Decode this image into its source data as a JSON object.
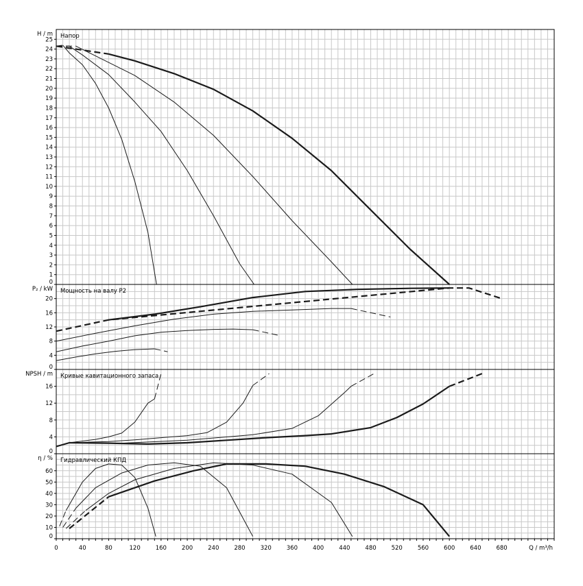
{
  "chart_data": {
    "type": "line",
    "x_axis": {
      "label": "Q / m³/h",
      "range": [
        0,
        760
      ],
      "minor_step": 10,
      "ticks": [
        0,
        40,
        80,
        120,
        160,
        200,
        240,
        280,
        320,
        360,
        400,
        440,
        480,
        520,
        560,
        600,
        640,
        680
      ]
    },
    "grid": true,
    "panels": [
      {
        "id": "head",
        "title": "Напор",
        "ylabel": "H / m",
        "ylim": [
          0,
          26
        ],
        "yticks": [
          0,
          1,
          2,
          3,
          4,
          5,
          6,
          7,
          8,
          9,
          10,
          11,
          12,
          13,
          14,
          15,
          16,
          17,
          18,
          19,
          20,
          21,
          22,
          23,
          24,
          25
        ],
        "y_grid_step": 1,
        "series": [
          {
            "weight": "thin",
            "dashed": [
              [
                0,
                24.3
              ],
              [
                10,
                24.4
              ]
            ],
            "solid": [
              [
                10,
                24.4
              ],
              [
                20,
                23.6
              ],
              [
                40,
                22.4
              ],
              [
                60,
                20.5
              ],
              [
                80,
                18.0
              ],
              [
                100,
                14.8
              ],
              [
                120,
                10.5
              ],
              [
                140,
                5.3
              ],
              [
                153,
                0
              ]
            ]
          },
          {
            "weight": "thin",
            "dashed": [
              [
                0,
                24.3
              ],
              [
                20,
                24.3
              ]
            ],
            "solid": [
              [
                20,
                24.3
              ],
              [
                40,
                23.4
              ],
              [
                80,
                21.4
              ],
              [
                120,
                18.6
              ],
              [
                160,
                15.6
              ],
              [
                200,
                11.6
              ],
              [
                240,
                7.0
              ],
              [
                280,
                2.1
              ],
              [
                302,
                0
              ]
            ]
          },
          {
            "weight": "thin",
            "dashed": [
              [
                0,
                24.3
              ],
              [
                30,
                24.3
              ]
            ],
            "solid": [
              [
                30,
                24.3
              ],
              [
                60,
                23.3
              ],
              [
                120,
                21.3
              ],
              [
                180,
                18.6
              ],
              [
                240,
                15.2
              ],
              [
                300,
                11.0
              ],
              [
                360,
                6.5
              ],
              [
                420,
                2.3
              ],
              [
                452,
                0
              ]
            ]
          },
          {
            "weight": "thick",
            "dashed": [
              [
                0,
                24.3
              ],
              [
                80,
                23.5
              ]
            ],
            "solid": [
              [
                80,
                23.5
              ],
              [
                120,
                22.8
              ],
              [
                180,
                21.5
              ],
              [
                240,
                19.9
              ],
              [
                300,
                17.7
              ],
              [
                360,
                14.9
              ],
              [
                420,
                11.6
              ],
              [
                480,
                7.6
              ],
              [
                540,
                3.6
              ],
              [
                600,
                0
              ]
            ]
          }
        ]
      },
      {
        "id": "power",
        "title": "Мощность на валу P2",
        "ylabel": "P₂ / kW",
        "ylim": [
          0,
          24
        ],
        "yticks": [
          0,
          4,
          8,
          12,
          16,
          20
        ],
        "y_grid_step": 2,
        "series": [
          {
            "weight": "thin",
            "dashed": [
              [
                150,
                5.8
              ],
              [
                170,
                5.0
              ]
            ],
            "solid": [
              [
                0,
                2.5
              ],
              [
                30,
                3.5
              ],
              [
                60,
                4.4
              ],
              [
                90,
                5.1
              ],
              [
                120,
                5.6
              ],
              [
                150,
                5.8
              ]
            ]
          },
          {
            "weight": "thin",
            "dashed": [
              [
                300,
                11.2
              ],
              [
                340,
                9.6
              ]
            ],
            "solid": [
              [
                0,
                5.0
              ],
              [
                40,
                6.6
              ],
              [
                80,
                8.0
              ],
              [
                120,
                9.5
              ],
              [
                160,
                10.5
              ],
              [
                200,
                11.0
              ],
              [
                240,
                11.3
              ],
              [
                270,
                11.4
              ],
              [
                300,
                11.2
              ]
            ]
          },
          {
            "weight": "thin",
            "dashed": [
              [
                450,
                17.2
              ],
              [
                510,
                14.8
              ]
            ],
            "solid": [
              [
                0,
                8.0
              ],
              [
                60,
                10.2
              ],
              [
                120,
                12.3
              ],
              [
                180,
                14.2
              ],
              [
                240,
                15.6
              ],
              [
                300,
                16.4
              ],
              [
                360,
                16.8
              ],
              [
                420,
                17.2
              ],
              [
                450,
                17.2
              ]
            ]
          },
          {
            "weight": "thick",
            "dashed": [
              [
                0,
                10.8
              ],
              [
                80,
                14.0
              ],
              [
                600,
                23.0
              ],
              [
                630,
                23.0
              ],
              [
                680,
                20.0
              ]
            ],
            "solid": [
              [
                80,
                14.0
              ],
              [
                150,
                15.6
              ],
              [
                220,
                17.7
              ],
              [
                300,
                20.3
              ],
              [
                380,
                22.0
              ],
              [
                460,
                22.6
              ],
              [
                540,
                22.9
              ],
              [
                600,
                23.0
              ]
            ]
          }
        ]
      },
      {
        "id": "npsh",
        "title": "Кривые кавитационного запаса",
        "ylabel": "NPSH / m",
        "ylim": [
          0,
          20
        ],
        "yticks": [
          0,
          4,
          8,
          12,
          16
        ],
        "y_grid_step": 2,
        "series": [
          {
            "weight": "thin",
            "dashed": [
              [
                150,
                13.0
              ],
              [
                160,
                19.0
              ]
            ],
            "solid": [
              [
                0,
                1.7
              ],
              [
                20,
                2.6
              ],
              [
                60,
                3.4
              ],
              [
                80,
                4.0
              ],
              [
                100,
                4.9
              ],
              [
                120,
                7.5
              ],
              [
                140,
                12.0
              ],
              [
                150,
                13.0
              ]
            ]
          },
          {
            "weight": "thin",
            "dashed": [
              [
                300,
                16.2
              ],
              [
                325,
                19.0
              ]
            ],
            "solid": [
              [
                0,
                1.7
              ],
              [
                20,
                2.6
              ],
              [
                80,
                2.9
              ],
              [
                120,
                3.3
              ],
              [
                160,
                3.8
              ],
              [
                200,
                4.3
              ],
              [
                230,
                5.0
              ],
              [
                260,
                7.5
              ],
              [
                285,
                12.0
              ],
              [
                300,
                16.2
              ]
            ]
          },
          {
            "weight": "thin",
            "dashed": [
              [
                450,
                16.0
              ],
              [
                485,
                19.0
              ]
            ],
            "solid": [
              [
                0,
                1.7
              ],
              [
                20,
                2.6
              ],
              [
                100,
                2.5
              ],
              [
                200,
                3.2
              ],
              [
                300,
                4.5
              ],
              [
                360,
                6.0
              ],
              [
                400,
                9.0
              ],
              [
                440,
                14.5
              ],
              [
                450,
                16.0
              ]
            ]
          },
          {
            "weight": "thick",
            "dashed": [
              [
                600,
                16.0
              ],
              [
                650,
                19.0
              ]
            ],
            "solid": [
              [
                0,
                1.7
              ],
              [
                20,
                2.6
              ],
              [
                80,
                2.5
              ],
              [
                140,
                2.3
              ],
              [
                200,
                2.6
              ],
              [
                260,
                3.2
              ],
              [
                320,
                3.8
              ],
              [
                380,
                4.3
              ],
              [
                420,
                4.7
              ],
              [
                480,
                6.2
              ],
              [
                520,
                8.6
              ],
              [
                560,
                11.8
              ],
              [
                600,
                16.0
              ]
            ]
          }
        ]
      },
      {
        "id": "efficiency",
        "title": "Гидравлический КПД",
        "ylabel": "η / %",
        "ylim": [
          0,
          75
        ],
        "yticks": [
          0,
          10,
          20,
          30,
          40,
          50,
          60
        ],
        "y_grid_step": 5,
        "series": [
          {
            "weight": "thin",
            "dashed": [
              [
                5,
                11
              ],
              [
                15,
                25
              ]
            ],
            "solid": [
              [
                15,
                25
              ],
              [
                40,
                50
              ],
              [
                60,
                62
              ],
              [
                80,
                66
              ],
              [
                100,
                65
              ],
              [
                120,
                54
              ],
              [
                140,
                27
              ],
              [
                152,
                2
              ]
            ]
          },
          {
            "weight": "thin",
            "dashed": [
              [
                10,
                10
              ],
              [
                30,
                27
              ]
            ],
            "solid": [
              [
                30,
                27
              ],
              [
                60,
                45
              ],
              [
                100,
                58
              ],
              [
                140,
                65
              ],
              [
                180,
                67
              ],
              [
                220,
                64
              ],
              [
                260,
                45
              ],
              [
                300,
                2
              ]
            ]
          },
          {
            "weight": "thin",
            "dashed": [
              [
                15,
                9
              ],
              [
                45,
                25
              ]
            ],
            "solid": [
              [
                45,
                25
              ],
              [
                80,
                40
              ],
              [
                120,
                52
              ],
              [
                180,
                62
              ],
              [
                240,
                67
              ],
              [
                300,
                65
              ],
              [
                360,
                57
              ],
              [
                420,
                32
              ],
              [
                452,
                2
              ]
            ]
          },
          {
            "weight": "thick",
            "dashed": [
              [
                20,
                9
              ],
              [
                80,
                37
              ]
            ],
            "solid": [
              [
                80,
                37
              ],
              [
                150,
                51
              ],
              [
                210,
                60
              ],
              [
                260,
                66
              ],
              [
                320,
                66
              ],
              [
                380,
                64
              ],
              [
                440,
                57
              ],
              [
                500,
                46
              ],
              [
                560,
                30
              ],
              [
                600,
                2
              ]
            ]
          }
        ]
      }
    ]
  }
}
